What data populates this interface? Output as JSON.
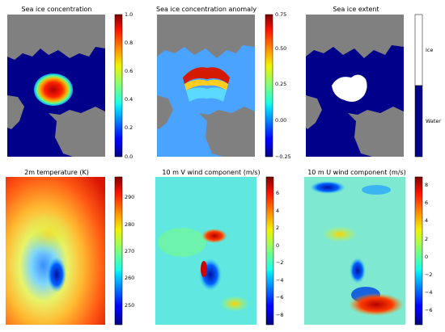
{
  "chart_data": [
    {
      "type": "heatmap",
      "title": "Sea ice concentration",
      "colorbar": {
        "cmap": "jet",
        "range": [
          0.0,
          1.0
        ],
        "ticks": [
          "0.0",
          "0.2",
          "0.4",
          "0.6",
          "0.8",
          "1.0"
        ]
      }
    },
    {
      "type": "heatmap",
      "title": "Sea ice concentration anomaly",
      "colorbar": {
        "cmap": "jet",
        "range": [
          -0.25,
          0.75
        ],
        "ticks": [
          "−0.25",
          "0.00",
          "0.25",
          "0.50",
          "0.75"
        ]
      }
    },
    {
      "type": "heatmap",
      "title": "Sea ice extent",
      "colorbar": {
        "cmap": "categorical",
        "categories": [
          "Water",
          "Ice"
        ],
        "colors": [
          "#00008b",
          "#ffffff"
        ]
      }
    },
    {
      "type": "heatmap",
      "title": "2m temperature (K)",
      "colorbar": {
        "cmap": "jet",
        "range": [
          243,
          298
        ],
        "ticks": [
          "250",
          "260",
          "270",
          "280",
          "290"
        ]
      }
    },
    {
      "type": "heatmap",
      "title": "10 m V wind component (m/s)",
      "colorbar": {
        "cmap": "jet",
        "range": [
          -9,
          8
        ],
        "ticks": [
          "−8",
          "−6",
          "−4",
          "−2",
          "0",
          "2",
          "4",
          "6"
        ]
      }
    },
    {
      "type": "heatmap",
      "title": "10 m U wind component (m/s)",
      "colorbar": {
        "cmap": "jet",
        "range": [
          -7.5,
          9
        ],
        "ticks": [
          "−6",
          "−4",
          "−2",
          "0",
          "2",
          "4",
          "6",
          "8"
        ]
      }
    }
  ],
  "colors": {
    "land": "#808080",
    "ocean": "#00008b",
    "ice": "#ffffff"
  }
}
